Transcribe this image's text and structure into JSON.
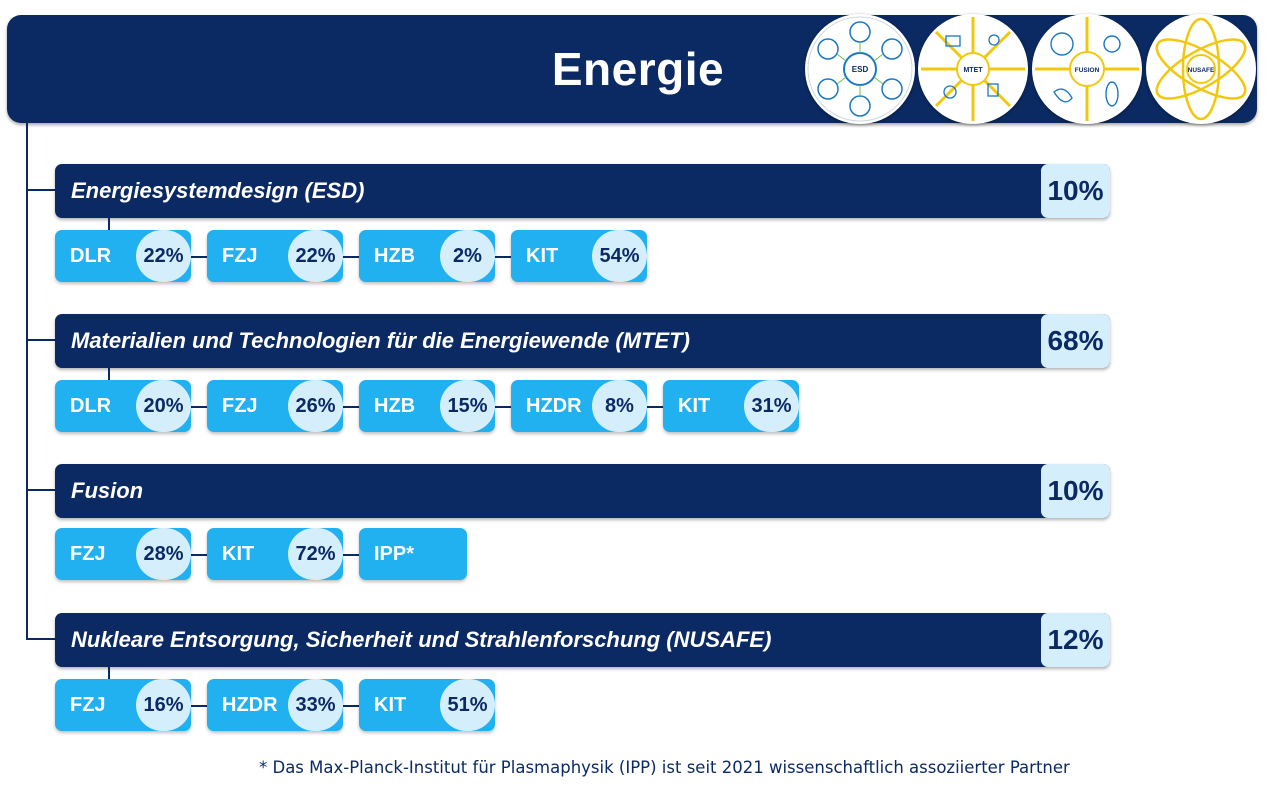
{
  "header": {
    "title": "Energie",
    "logos": [
      {
        "label": "ESD",
        "color": "#1a78c2"
      },
      {
        "label": "MTET",
        "color": "#f2c80f"
      },
      {
        "label": "FUSION",
        "color": "#f2c80f"
      },
      {
        "label": "NUSAFE",
        "color": "#f2c80f"
      }
    ]
  },
  "colors": {
    "navy": "#0b2a63",
    "blue": "#21b0f0",
    "light": "#d5eefb"
  },
  "groups": [
    {
      "title": "Energiesystemdesign (ESD)",
      "share": "10%",
      "partners": [
        {
          "name": "DLR",
          "share": "22%"
        },
        {
          "name": "FZJ",
          "share": "22%"
        },
        {
          "name": "HZB",
          "share": "2%"
        },
        {
          "name": "KIT",
          "share": "54%"
        }
      ]
    },
    {
      "title": "Materialien und Technologien für die Energiewende (MTET)",
      "share": "68%",
      "partners": [
        {
          "name": "DLR",
          "share": "20%"
        },
        {
          "name": "FZJ",
          "share": "26%"
        },
        {
          "name": "HZB",
          "share": "15%"
        },
        {
          "name": "HZDR",
          "share": "8%"
        },
        {
          "name": "KIT",
          "share": "31%"
        }
      ]
    },
    {
      "title": "Fusion",
      "share": "10%",
      "partners": [
        {
          "name": "FZJ",
          "share": "28%"
        },
        {
          "name": "KIT",
          "share": "72%"
        },
        {
          "name": "IPP*",
          "share": ""
        }
      ]
    },
    {
      "title": "Nukleare Entsorgung, Sicherheit und Strahlenforschung (NUSAFE)",
      "share": "12%",
      "partners": [
        {
          "name": "FZJ",
          "share": "16%"
        },
        {
          "name": "HZDR",
          "share": "33%"
        },
        {
          "name": "KIT",
          "share": "51%"
        }
      ]
    }
  ],
  "footnote": "* Das Max-Planck-Institut für Plasmaphysik (IPP) ist seit 2021 wissenschaftlich assoziierter Partner"
}
